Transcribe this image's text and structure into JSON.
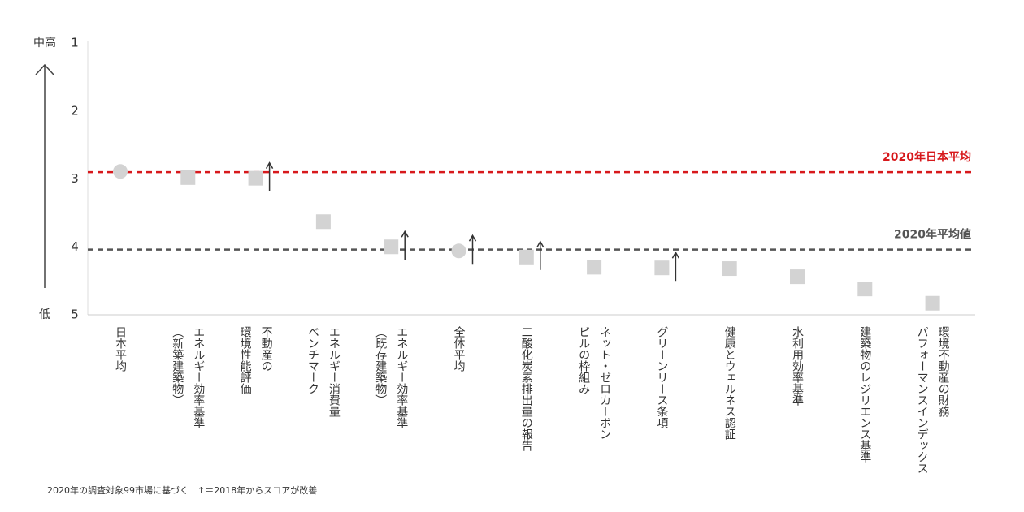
{
  "chart_data": {
    "type": "dot",
    "y_axis_top_label": "中高",
    "y_axis_bottom_label": "低",
    "categories": [
      [
        "日本平均"
      ],
      [
        "エネルギー効率基準",
        "（新築建築物）"
      ],
      [
        "不動産の",
        "環境性能評価"
      ],
      [
        "エネルギー消費量",
        "ベンチマーク"
      ],
      [
        "エネルギー効率基準",
        "（既存建築物）"
      ],
      [
        "全体平均"
      ],
      [
        "二酸化炭素排出量の報告"
      ],
      [
        "ネット・ゼロカーボン",
        "ビルの枠組み"
      ],
      [
        "グリーンリース条項"
      ],
      [
        "健康とウェルネス認証"
      ],
      [
        "水利用効率基準"
      ],
      [
        "建築物のレジリエンス基準"
      ],
      [
        "環境不動産の財務",
        "パフォーマンスインデックス"
      ]
    ],
    "values": [
      2.89,
      2.98,
      2.99,
      3.63,
      4.0,
      4.06,
      4.15,
      4.3,
      4.31,
      4.32,
      4.44,
      4.62,
      4.83
    ],
    "markers": [
      "circle",
      "square",
      "square",
      "square",
      "square",
      "circle",
      "square",
      "square",
      "square",
      "square",
      "square",
      "square",
      "square"
    ],
    "improved": [
      false,
      false,
      true,
      false,
      true,
      true,
      true,
      false,
      true,
      false,
      false,
      false,
      false
    ],
    "color": "#d3d3d3",
    "ylim": [
      1,
      5
    ],
    "yticks": [
      1,
      2,
      3,
      4,
      5
    ],
    "y_inverted": true,
    "reference_lines": [
      {
        "label": "2020年日本平均",
        "value": 2.9,
        "color": "#d7191c"
      },
      {
        "label": "2020年平均値",
        "value": 4.04,
        "color": "#555555"
      }
    ],
    "footnote": "2020年の調査対象99市場に基づく　↑＝2018年からスコアが改善"
  }
}
